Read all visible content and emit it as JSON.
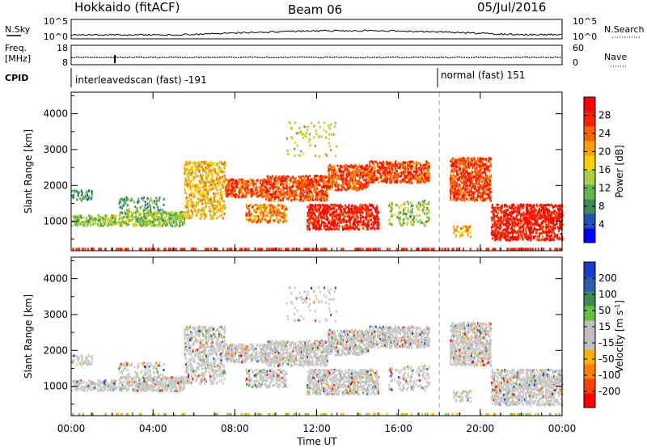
{
  "header": {
    "station": "Hokkaido (fitACF)",
    "beam": "Beam 06",
    "date": "05/Jul/2016"
  },
  "noise_panel": {
    "label_left": "N.Sky",
    "label_right": "N.Search",
    "left_ticks": [
      "10^5",
      "10^0"
    ],
    "right_ticks": [
      "10^5",
      "10^0"
    ]
  },
  "freq_panel": {
    "label_left_1": "Freq.",
    "label_left_2": "[MHz]",
    "label_right": "Nave",
    "left_ticks": [
      "18",
      "8"
    ],
    "right_ticks": [
      "60",
      "0"
    ]
  },
  "cpid": {
    "label": "CPID",
    "segment_1": "interleavedscan (fast) -191",
    "segment_2": "normal (fast) 151"
  },
  "colors": {
    "background": "#ffffff",
    "axis": "#000000",
    "power_scale": [
      "#0000ff",
      "#2050c0",
      "#3c8a5a",
      "#5fb84a",
      "#a8d040",
      "#ffd000",
      "#ffa000",
      "#ff6000",
      "#ff2000",
      "#ff0000"
    ],
    "velocity_scale": [
      "#1a3cc8",
      "#2860b0",
      "#3c8c4c",
      "#60c040",
      "#c0c0c0",
      "#c0c0c0",
      "#ffb000",
      "#ff8000",
      "#ff4000",
      "#ff0000"
    ]
  },
  "chart_data": [
    {
      "type": "heatmap",
      "name_shown": "",
      "ylabel": "Slant Range [km]",
      "ylim": [
        180,
        4600
      ],
      "yticks": [
        1000,
        2000,
        3000,
        4000
      ],
      "xlim": [
        "00:00",
        "24:00"
      ],
      "colorbar_label": "Power [dB]",
      "colorbar_ticks": [
        4,
        8,
        12,
        16,
        20,
        24,
        28
      ],
      "colorbar_range": [
        0,
        30
      ]
    },
    {
      "type": "heatmap",
      "ylabel": "Slant Range [km]",
      "ylim": [
        180,
        4600
      ],
      "yticks": [
        1000,
        2000,
        3000,
        4000
      ],
      "xlim": [
        "00:00",
        "24:00"
      ],
      "colorbar_label": "Velocity [m s",
      "colorbar_label_sup": "-1",
      "colorbar_label_end": "]",
      "colorbar_ticks": [
        200,
        100,
        50,
        15,
        -15,
        -50,
        -100,
        -200
      ],
      "colorbar_range": [
        -200,
        200
      ]
    }
  ],
  "time_axis": {
    "ticks": [
      "00:00",
      "04:00",
      "08:00",
      "12:00",
      "16:00",
      "20:00",
      "00:00"
    ],
    "label": "Time UT"
  },
  "events": {
    "mode_change_time_hours": 18.0
  }
}
